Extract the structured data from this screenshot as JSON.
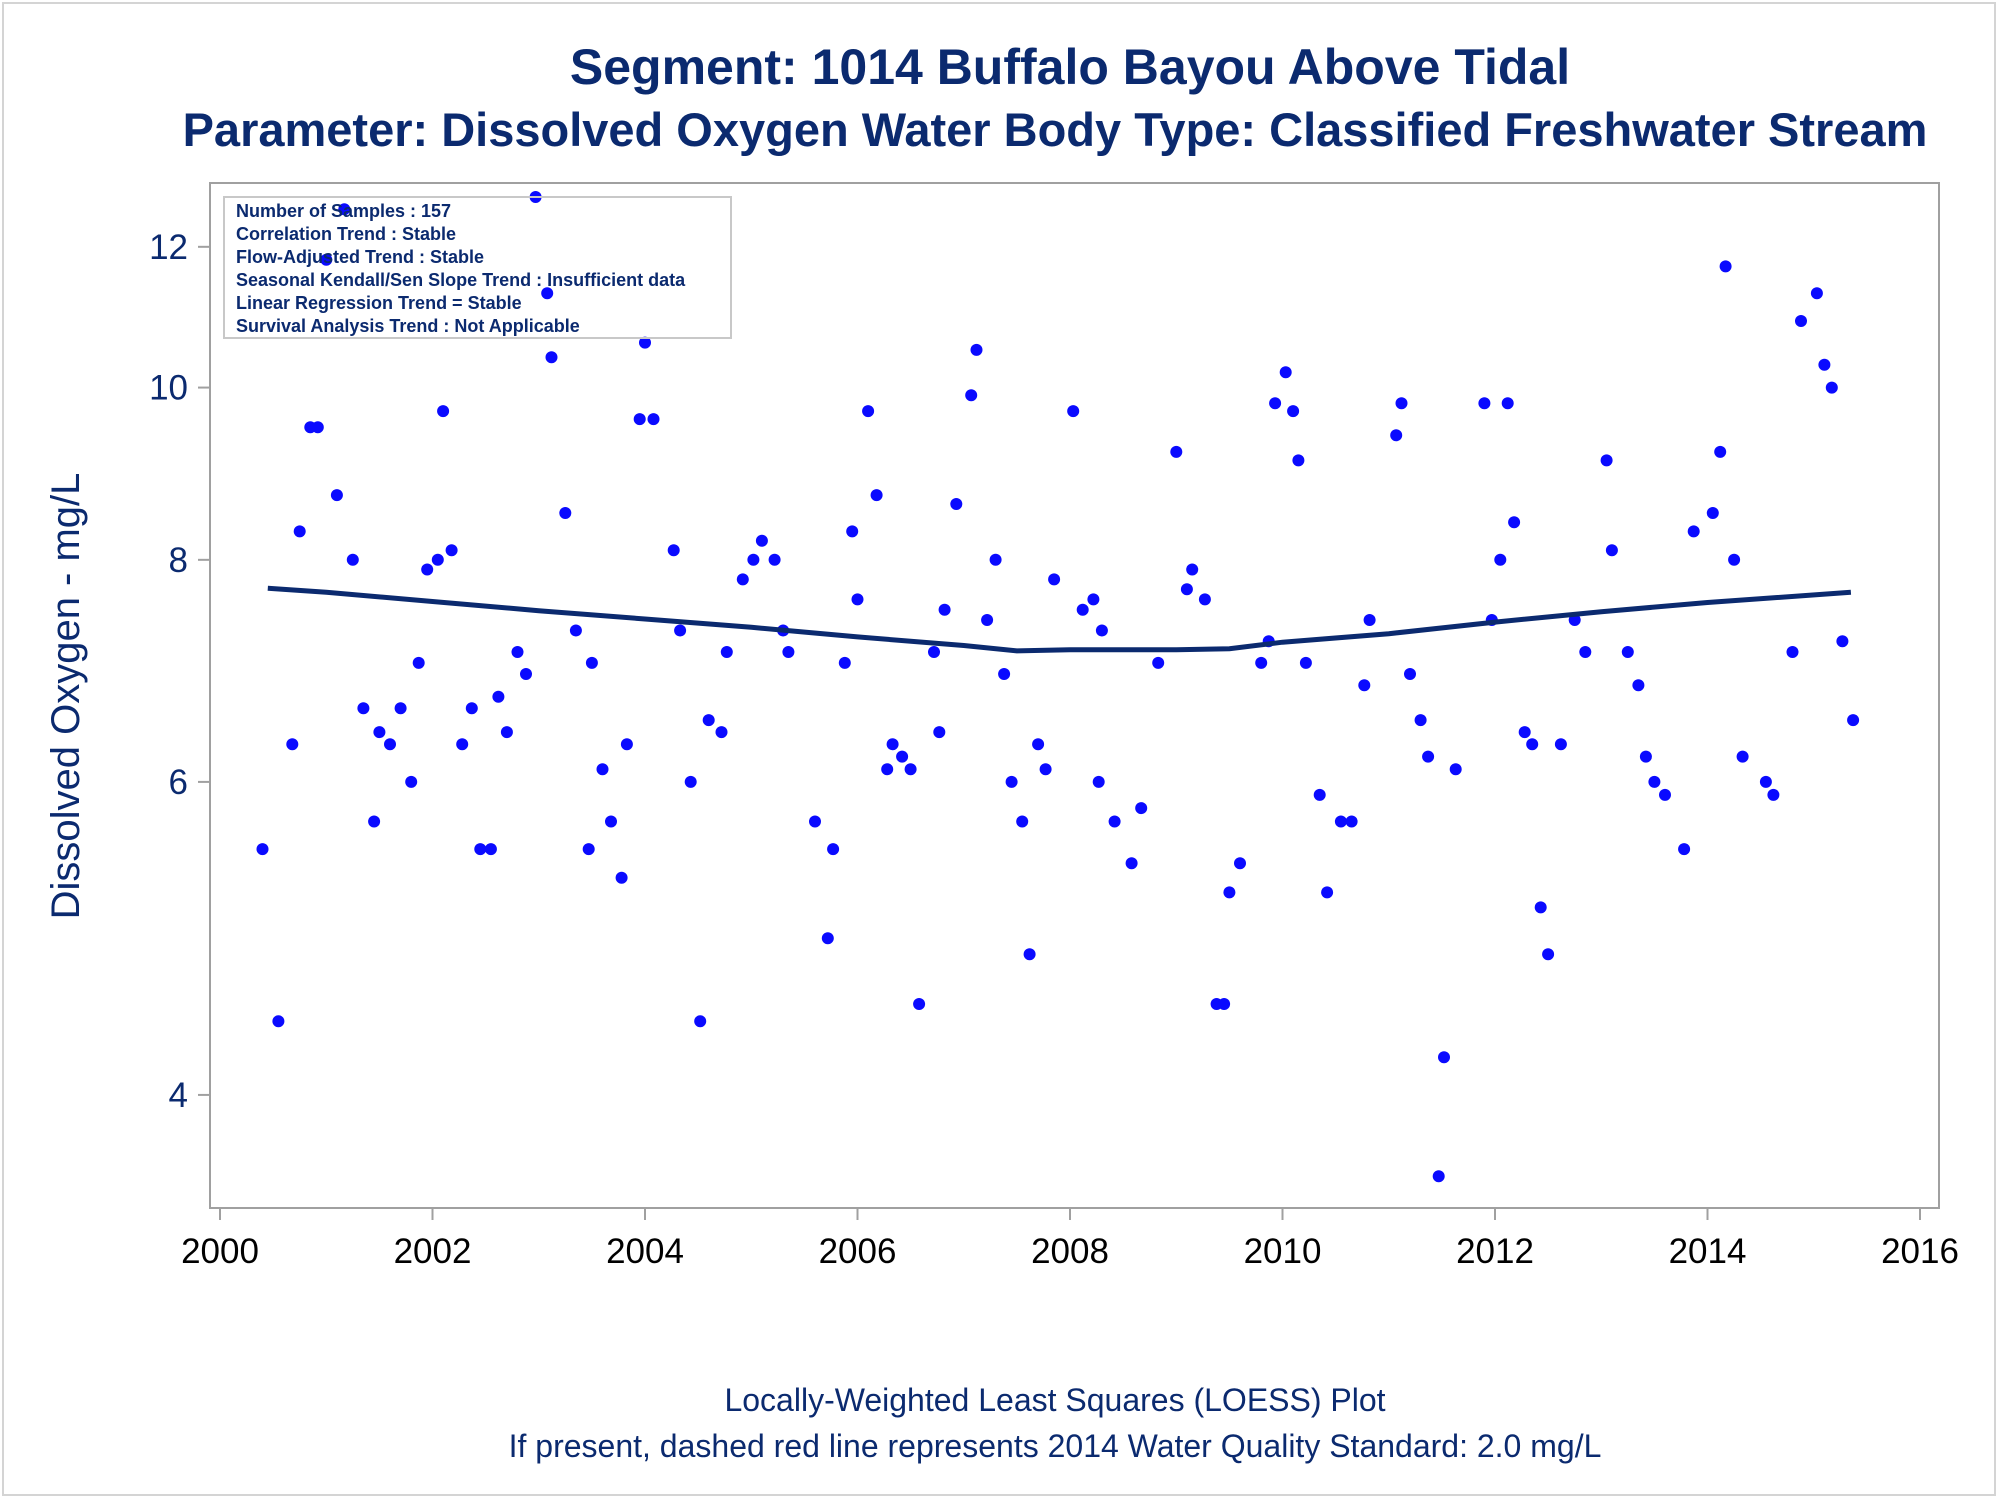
{
  "title": "Segment: 1014  Buffalo Bayou Above Tidal",
  "subtitle": "Parameter: Dissolved Oxygen   Water Body Type: Classified Freshwater Stream",
  "footnote_1": "Locally-Weighted Least Squares (LOESS) Plot",
  "footnote_2": "If present, dashed red line represents 2014 Water Quality Standard: 2.0 mg/L",
  "info_box": [
    "Number of Samples : 157",
    "Correlation Trend : Stable",
    "Flow-Adjusted Trend : Stable",
    "Seasonal Kendall/Sen Slope Trend : Insufficient data",
    "Linear Regression Trend = Stable",
    "Survival Analysis Trend : Not Applicable"
  ],
  "colors": {
    "points": "#0a0aff",
    "loess": "#0b2a6f",
    "text": "#0b2a6f",
    "axis": "#a0a0a0"
  },
  "chart_data": {
    "type": "scatter",
    "ylabel": "Dissolved Oxygen - mg/L",
    "xlabel": "",
    "y_scale": "log",
    "xlim": [
      2000,
      2016
    ],
    "ylim": [
      3.5,
      12.8
    ],
    "x_ticks": [
      "2000",
      "2002",
      "2004",
      "2006",
      "2008",
      "2010",
      "2012",
      "2014",
      "2016"
    ],
    "y_ticks": [
      "4",
      "6",
      "8",
      "10",
      "12"
    ],
    "points": [
      [
        2000.4,
        5.5
      ],
      [
        2000.55,
        4.4
      ],
      [
        2000.68,
        6.3
      ],
      [
        2000.75,
        8.3
      ],
      [
        2000.85,
        9.5
      ],
      [
        2000.92,
        9.5
      ],
      [
        2001.0,
        11.8
      ],
      [
        2001.1,
        8.7
      ],
      [
        2001.17,
        12.6
      ],
      [
        2001.25,
        8.0
      ],
      [
        2001.35,
        6.6
      ],
      [
        2001.45,
        5.7
      ],
      [
        2001.5,
        6.4
      ],
      [
        2001.6,
        6.3
      ],
      [
        2001.7,
        6.6
      ],
      [
        2001.8,
        6.0
      ],
      [
        2001.87,
        7.0
      ],
      [
        2001.95,
        7.9
      ],
      [
        2002.05,
        8.0
      ],
      [
        2002.1,
        9.7
      ],
      [
        2002.18,
        8.1
      ],
      [
        2002.28,
        6.3
      ],
      [
        2002.37,
        6.6
      ],
      [
        2002.45,
        5.5
      ],
      [
        2002.55,
        5.5
      ],
      [
        2002.62,
        6.7
      ],
      [
        2002.7,
        6.4
      ],
      [
        2002.8,
        7.1
      ],
      [
        2002.88,
        6.9
      ],
      [
        2002.97,
        12.8
      ],
      [
        2003.08,
        11.3
      ],
      [
        2003.12,
        10.4
      ],
      [
        2003.25,
        8.5
      ],
      [
        2003.35,
        7.3
      ],
      [
        2003.47,
        5.5
      ],
      [
        2003.5,
        7.0
      ],
      [
        2003.6,
        6.1
      ],
      [
        2003.68,
        5.7
      ],
      [
        2003.78,
        5.3
      ],
      [
        2003.83,
        6.3
      ],
      [
        2003.95,
        9.6
      ],
      [
        2004.0,
        10.6
      ],
      [
        2004.08,
        9.6
      ],
      [
        2004.27,
        8.1
      ],
      [
        2004.33,
        7.3
      ],
      [
        2004.43,
        6.0
      ],
      [
        2004.52,
        4.4
      ],
      [
        2004.6,
        6.5
      ],
      [
        2004.72,
        6.4
      ],
      [
        2004.77,
        7.1
      ],
      [
        2004.92,
        7.8
      ],
      [
        2005.02,
        8.0
      ],
      [
        2005.1,
        8.2
      ],
      [
        2005.22,
        8.0
      ],
      [
        2005.3,
        7.3
      ],
      [
        2005.35,
        7.1
      ],
      [
        2005.6,
        5.7
      ],
      [
        2005.72,
        4.9
      ],
      [
        2005.77,
        5.5
      ],
      [
        2005.88,
        7.0
      ],
      [
        2005.95,
        8.3
      ],
      [
        2006.0,
        7.6
      ],
      [
        2006.1,
        9.7
      ],
      [
        2006.18,
        8.7
      ],
      [
        2006.28,
        6.1
      ],
      [
        2006.33,
        6.3
      ],
      [
        2006.42,
        6.2
      ],
      [
        2006.5,
        6.1
      ],
      [
        2006.58,
        4.5
      ],
      [
        2006.72,
        7.1
      ],
      [
        2006.77,
        6.4
      ],
      [
        2006.82,
        7.5
      ],
      [
        2006.93,
        8.6
      ],
      [
        2007.07,
        9.9
      ],
      [
        2007.12,
        10.5
      ],
      [
        2007.22,
        7.4
      ],
      [
        2007.3,
        8.0
      ],
      [
        2007.38,
        6.9
      ],
      [
        2007.45,
        6.0
      ],
      [
        2007.55,
        5.7
      ],
      [
        2007.62,
        4.8
      ],
      [
        2007.7,
        6.3
      ],
      [
        2007.77,
        6.1
      ],
      [
        2007.85,
        7.8
      ],
      [
        2008.03,
        9.7
      ],
      [
        2008.12,
        7.5
      ],
      [
        2008.22,
        7.6
      ],
      [
        2008.3,
        7.3
      ],
      [
        2008.27,
        6.0
      ],
      [
        2008.42,
        5.7
      ],
      [
        2008.58,
        5.4
      ],
      [
        2008.67,
        5.8
      ],
      [
        2008.83,
        7.0
      ],
      [
        2009.0,
        9.2
      ],
      [
        2009.1,
        7.7
      ],
      [
        2009.15,
        7.9
      ],
      [
        2009.27,
        7.6
      ],
      [
        2009.38,
        4.5
      ],
      [
        2009.45,
        4.5
      ],
      [
        2009.5,
        5.2
      ],
      [
        2009.6,
        5.4
      ],
      [
        2009.8,
        7.0
      ],
      [
        2009.87,
        7.2
      ],
      [
        2009.93,
        9.8
      ],
      [
        2010.03,
        10.2
      ],
      [
        2010.1,
        9.7
      ],
      [
        2010.15,
        9.1
      ],
      [
        2010.22,
        7.0
      ],
      [
        2010.35,
        5.9
      ],
      [
        2010.42,
        5.2
      ],
      [
        2010.55,
        5.7
      ],
      [
        2010.65,
        5.7
      ],
      [
        2010.77,
        6.8
      ],
      [
        2010.82,
        7.4
      ],
      [
        2011.07,
        9.4
      ],
      [
        2011.12,
        9.8
      ],
      [
        2011.2,
        6.9
      ],
      [
        2011.3,
        6.5
      ],
      [
        2011.37,
        6.2
      ],
      [
        2011.47,
        3.6
      ],
      [
        2011.52,
        4.2
      ],
      [
        2011.63,
        6.1
      ],
      [
        2011.9,
        9.8
      ],
      [
        2011.97,
        7.4
      ],
      [
        2012.05,
        8.0
      ],
      [
        2012.12,
        9.8
      ],
      [
        2012.18,
        8.4
      ],
      [
        2012.28,
        6.4
      ],
      [
        2012.35,
        6.3
      ],
      [
        2012.43,
        5.1
      ],
      [
        2012.5,
        4.8
      ],
      [
        2012.62,
        6.3
      ],
      [
        2012.75,
        7.4
      ],
      [
        2012.85,
        7.1
      ],
      [
        2013.05,
        9.1
      ],
      [
        2013.1,
        8.1
      ],
      [
        2013.25,
        7.1
      ],
      [
        2013.35,
        6.8
      ],
      [
        2013.42,
        6.2
      ],
      [
        2013.5,
        6.0
      ],
      [
        2013.6,
        5.9
      ],
      [
        2013.78,
        5.5
      ],
      [
        2013.87,
        8.3
      ],
      [
        2014.05,
        8.5
      ],
      [
        2014.12,
        9.2
      ],
      [
        2014.17,
        11.7
      ],
      [
        2014.25,
        8.0
      ],
      [
        2014.33,
        6.2
      ],
      [
        2014.55,
        6.0
      ],
      [
        2014.62,
        5.9
      ],
      [
        2014.8,
        7.1
      ],
      [
        2014.88,
        10.9
      ],
      [
        2015.03,
        11.3
      ],
      [
        2015.1,
        10.3
      ],
      [
        2015.17,
        10.0
      ],
      [
        2015.27,
        7.2
      ],
      [
        2015.37,
        6.5
      ]
    ],
    "loess": [
      [
        2000.45,
        7.71
      ],
      [
        2001.0,
        7.67
      ],
      [
        2002.0,
        7.58
      ],
      [
        2003.0,
        7.49
      ],
      [
        2004.0,
        7.41
      ],
      [
        2005.0,
        7.33
      ],
      [
        2006.0,
        7.24
      ],
      [
        2007.0,
        7.16
      ],
      [
        2007.5,
        7.11
      ],
      [
        2008.0,
        7.12
      ],
      [
        2009.0,
        7.12
      ],
      [
        2009.5,
        7.13
      ],
      [
        2010.0,
        7.19
      ],
      [
        2011.0,
        7.27
      ],
      [
        2012.0,
        7.38
      ],
      [
        2013.0,
        7.48
      ],
      [
        2014.0,
        7.57
      ],
      [
        2015.35,
        7.67
      ]
    ]
  }
}
